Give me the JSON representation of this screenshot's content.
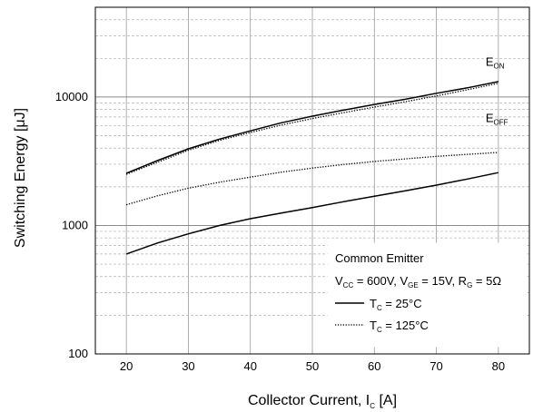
{
  "chart_data": {
    "type": "line",
    "title": "",
    "xlabel_main": "Collector Current, I",
    "xlabel_sub": "C",
    "xlabel_tail": " [A]",
    "ylabel": "Switching Energy [μJ]",
    "xlim": [
      15,
      85
    ],
    "ylim": [
      100,
      50000
    ],
    "yscale": "log",
    "grid": true,
    "x_ticks": [
      20,
      30,
      40,
      50,
      60,
      70,
      80
    ],
    "y_ticks": [
      100,
      1000,
      10000
    ],
    "y_tick_labels": [
      "100",
      "1000",
      "10000"
    ],
    "x": [
      20,
      25,
      30,
      35,
      40,
      45,
      50,
      55,
      60,
      65,
      70,
      75,
      80
    ],
    "series": [
      {
        "name": "E",
        "sub": "ON",
        "tc": "25",
        "style": "solid",
        "values": [
          2550,
          3200,
          3950,
          4700,
          5450,
          6300,
          7100,
          7900,
          8750,
          9600,
          10700,
          11800,
          13200
        ]
      },
      {
        "name": "E",
        "sub": "ON",
        "tc": "125",
        "style": "dotted",
        "values": [
          2500,
          3100,
          3850,
          4600,
          5300,
          6050,
          6800,
          7550,
          8350,
          9200,
          10200,
          11400,
          12800
        ]
      },
      {
        "name": "E",
        "sub": "OFF",
        "tc": "25",
        "style": "solid",
        "values": [
          600,
          730,
          860,
          1000,
          1130,
          1250,
          1380,
          1530,
          1690,
          1860,
          2060,
          2300,
          2580
        ]
      },
      {
        "name": "E",
        "sub": "OFF",
        "tc": "125",
        "style": "dotted",
        "values": [
          1450,
          1700,
          1950,
          2170,
          2380,
          2600,
          2800,
          2980,
          3150,
          3300,
          3450,
          3580,
          3700
        ]
      }
    ],
    "curve_labels": [
      {
        "main": "E",
        "sub": "ON",
        "x": 80,
        "y": 17500
      },
      {
        "main": "E",
        "sub": "OFF",
        "x": 80,
        "y": 6400
      }
    ],
    "legend": {
      "placement": "bottom-right",
      "title": "Common Emitter",
      "conditions": [
        {
          "main": "V",
          "sub": "CC",
          "text": " = 600V, "
        },
        {
          "main": "V",
          "sub": "GE",
          "text": " = 15V, "
        },
        {
          "main": "R",
          "sub": "G",
          "text": " = 5Ω"
        }
      ],
      "entries": [
        {
          "style": "solid",
          "main": "T",
          "sub": "C",
          "text": " = 25°C"
        },
        {
          "style": "dotted",
          "main": "T",
          "sub": "C",
          "text": " = 125°C"
        }
      ]
    }
  }
}
